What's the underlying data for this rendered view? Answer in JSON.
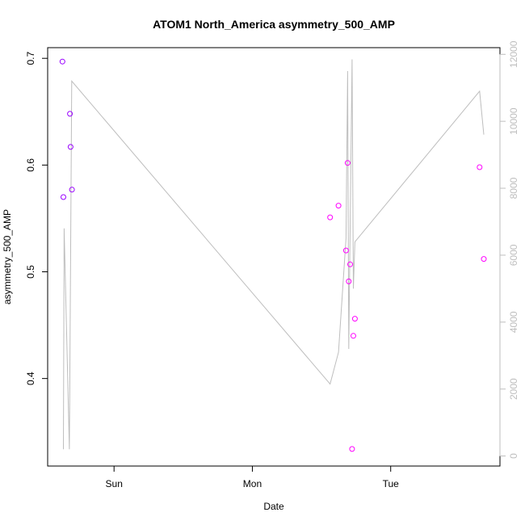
{
  "chart_data": {
    "type": "scatter",
    "title": "ATOM1 North_America asymmetry_500_AMP",
    "xlabel": "Date",
    "ylabel": "asymmetry_500_AMP",
    "x_ticks": [
      {
        "label": "Sun",
        "value": 1.0
      },
      {
        "label": "Mon",
        "value": 2.0
      },
      {
        "label": "Tue",
        "value": 3.0
      }
    ],
    "xlim": [
      0.52,
      3.79
    ],
    "ylim": [
      0.318,
      0.71
    ],
    "y_ticks": [
      0.4,
      0.5,
      0.6,
      0.7
    ],
    "y_tick_labels": [
      "0.4",
      "0.5",
      "0.6",
      "0.7"
    ],
    "y2lim": [
      -300,
      12200
    ],
    "y2_ticks": [
      0,
      2000,
      4000,
      6000,
      8000,
      10000,
      12000
    ],
    "y2_tick_labels": [
      "0",
      "2000",
      "4000",
      "6000",
      "8000",
      "10000",
      "12000"
    ],
    "series": [
      {
        "kind": "points",
        "color": "#9900ff",
        "points": [
          {
            "x": 0.627,
            "y": 0.697
          },
          {
            "x": 0.634,
            "y": 0.57
          },
          {
            "x": 0.681,
            "y": 0.648
          },
          {
            "x": 0.686,
            "y": 0.617
          },
          {
            "x": 0.696,
            "y": 0.577
          }
        ]
      },
      {
        "kind": "points",
        "color": "#ff00ff",
        "points": [
          {
            "x": 2.562,
            "y": 0.551
          },
          {
            "x": 2.623,
            "y": 0.562
          },
          {
            "x": 2.677,
            "y": 0.52
          },
          {
            "x": 2.689,
            "y": 0.602
          },
          {
            "x": 2.697,
            "y": 0.491
          },
          {
            "x": 2.707,
            "y": 0.507
          },
          {
            "x": 2.721,
            "y": 0.334
          },
          {
            "x": 2.73,
            "y": 0.44
          },
          {
            "x": 2.741,
            "y": 0.456
          },
          {
            "x": 3.643,
            "y": 0.598
          },
          {
            "x": 3.673,
            "y": 0.512
          }
        ]
      },
      {
        "kind": "line",
        "axis": "right",
        "color": "#bebebe",
        "points": [
          {
            "x": 0.634,
            "y": 200
          },
          {
            "x": 0.639,
            "y": 6800
          },
          {
            "x": 0.677,
            "y": 200
          },
          {
            "x": 0.694,
            "y": 11200
          },
          {
            "x": 2.562,
            "y": 2150
          },
          {
            "x": 2.623,
            "y": 3100
          },
          {
            "x": 2.677,
            "y": 6500
          },
          {
            "x": 2.689,
            "y": 11500
          },
          {
            "x": 2.697,
            "y": 3200
          },
          {
            "x": 2.721,
            "y": 11850
          },
          {
            "x": 2.73,
            "y": 5000
          },
          {
            "x": 2.741,
            "y": 6400
          },
          {
            "x": 3.643,
            "y": 10900
          },
          {
            "x": 3.673,
            "y": 9600
          }
        ]
      }
    ],
    "grid": false
  }
}
